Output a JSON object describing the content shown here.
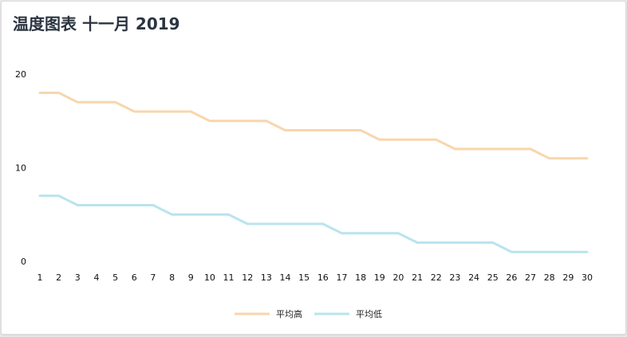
{
  "chart_data": {
    "type": "line",
    "title": "温度图表 十一月 2019",
    "xlabel": "",
    "ylabel": "",
    "x": [
      1,
      2,
      3,
      4,
      5,
      6,
      7,
      8,
      9,
      10,
      11,
      12,
      13,
      14,
      15,
      16,
      17,
      18,
      19,
      20,
      21,
      22,
      23,
      24,
      25,
      26,
      27,
      28,
      29,
      30
    ],
    "ylim": [
      0,
      20
    ],
    "yticks": [
      0,
      10,
      20
    ],
    "grid": false,
    "legend_position": "bottom",
    "series": [
      {
        "name": "平均高",
        "color": "#f8d6ad",
        "values": [
          18,
          18,
          17,
          17,
          17,
          16,
          16,
          16,
          16,
          15,
          15,
          15,
          15,
          14,
          14,
          14,
          14,
          14,
          13,
          13,
          13,
          13,
          12,
          12,
          12,
          12,
          12,
          11,
          11,
          11
        ]
      },
      {
        "name": "平均低",
        "color": "#b9e4ed",
        "values": [
          7,
          7,
          6,
          6,
          6,
          6,
          6,
          5,
          5,
          5,
          5,
          4,
          4,
          4,
          4,
          4,
          3,
          3,
          3,
          3,
          2,
          2,
          2,
          2,
          2,
          1,
          1,
          1,
          1,
          1
        ]
      }
    ]
  }
}
